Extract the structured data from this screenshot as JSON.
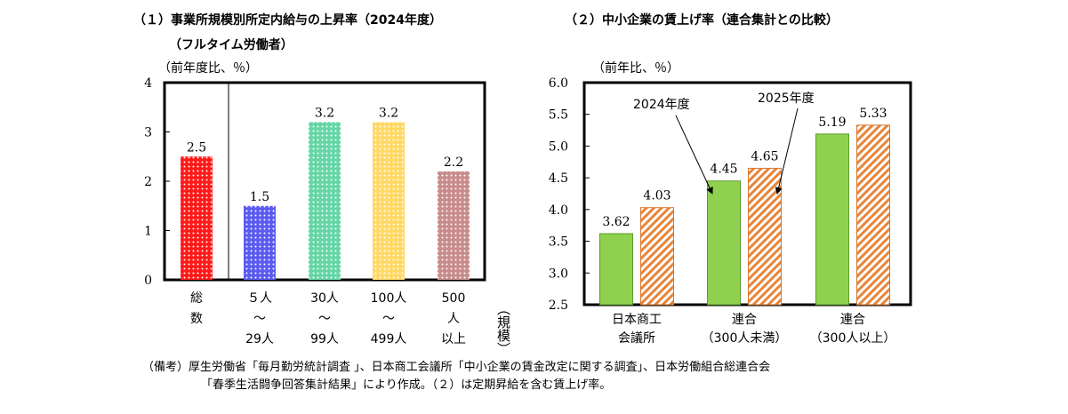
{
  "header": {
    "cut_line": "…　　　　　　　　　　　　　　　　　　　　　　　　　　　　　　　　　　　　　　"
  },
  "chart1": {
    "title": "（１）事業所規模別所定内給与の上昇率（2024年度）",
    "subtitle": "（フルタイム労働者）",
    "unit": "（前年度比、％）",
    "size_axis_label": "（規模）"
  },
  "chart2": {
    "title": "（２）中小企業の賃上げ率（連合集計との比較）",
    "unit": "（前年比、％）",
    "annotation_2024": "2024年度",
    "annotation_2025": "2025年度"
  },
  "notes": {
    "line1": "（備考）厚生労働省「毎月勤労統計調査 」、日本商工会議所「中小企業の賃金改定に関する調査」、日本労働組合総連合会",
    "line2": "「春季生活闘争回答集計結果」により作成。（２）は定期昇給を含む賃上げ率。"
  },
  "chart_data": [
    {
      "type": "bar",
      "categories": [
        [
          "総",
          "数"
        ],
        [
          "５人",
          "～",
          "29人"
        ],
        [
          "30人",
          "～",
          "99人"
        ],
        [
          "100人",
          "～",
          "499人"
        ],
        [
          "500",
          "人",
          "以上"
        ]
      ],
      "values": [
        2.5,
        1.5,
        3.2,
        3.2,
        2.2
      ],
      "value_labels": [
        "2.5",
        "1.5",
        "3.2",
        "3.2",
        "2.2"
      ],
      "colors": [
        "#ff1a1a",
        "#5b5bf0",
        "#66d6a6",
        "#ffd966",
        "#c98c8c"
      ],
      "pattern": "dotted",
      "ylim": [
        0,
        4
      ],
      "yticks": [
        "0",
        "1",
        "2",
        "3",
        "4"
      ],
      "grid": false
    },
    {
      "type": "bar",
      "categories": [
        [
          "日本商工",
          "会議所"
        ],
        [
          "連合",
          "（300人未満）"
        ],
        [
          "連合",
          "（300人以上）"
        ]
      ],
      "series": [
        {
          "values": [
            3.62,
            4.45,
            5.19
          ],
          "labels": [
            "3.62",
            "4.45",
            "5.19"
          ],
          "color": "#8fd14f",
          "fill": "solid"
        },
        {
          "values": [
            4.03,
            4.65,
            5.33
          ],
          "labels": [
            "4.03",
            "4.65",
            "5.33"
          ],
          "color": "#e8853a",
          "fill": "hatched"
        }
      ],
      "ylim": [
        2.5,
        6.0
      ],
      "yticks": [
        "2.5",
        "3.0",
        "3.5",
        "4.0",
        "4.5",
        "5.0",
        "5.5",
        "6.0"
      ],
      "grid": false
    }
  ]
}
